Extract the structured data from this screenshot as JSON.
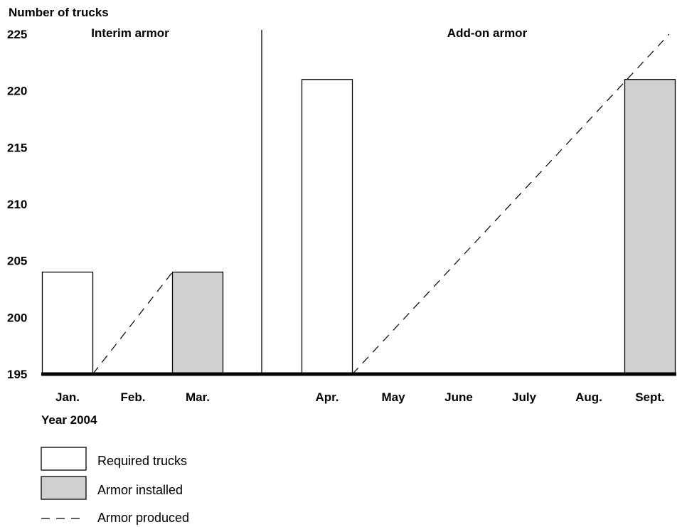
{
  "chart_data": {
    "type": "bar",
    "ylabel": "Number of trucks",
    "xlabel": "Year 2004",
    "ylim": [
      195,
      225
    ],
    "yticks": [
      195,
      200,
      205,
      210,
      215,
      220,
      225
    ],
    "sections": [
      "Interim armor",
      "Add-on armor"
    ],
    "categories": [
      "Jan.",
      "Feb.",
      "Mar.",
      "Apr.",
      "May",
      "June",
      "July",
      "Aug.",
      "Sept."
    ],
    "series": [
      {
        "name": "Required trucks",
        "kind": "bar",
        "color": "#ffffff",
        "values": [
          204,
          null,
          null,
          221,
          null,
          null,
          null,
          null,
          null
        ]
      },
      {
        "name": "Armor installed",
        "kind": "bar",
        "color": "#d0d0d0",
        "values": [
          null,
          null,
          204,
          null,
          null,
          null,
          null,
          null,
          221
        ]
      },
      {
        "name": "Armor produced",
        "kind": "dashed-line",
        "color": "#000000",
        "segments": [
          [
            {
              "x": "Jan.",
              "y": 195
            },
            {
              "x": "Mar.",
              "y": 204
            }
          ],
          [
            {
              "x": "Apr.",
              "y": 195
            },
            {
              "x": "Sept.",
              "y": 225
            }
          ]
        ]
      }
    ],
    "legend": [
      "Required trucks",
      "Armor installed",
      "Armor produced"
    ],
    "grid": false,
    "legend_position": "bottom-left"
  }
}
